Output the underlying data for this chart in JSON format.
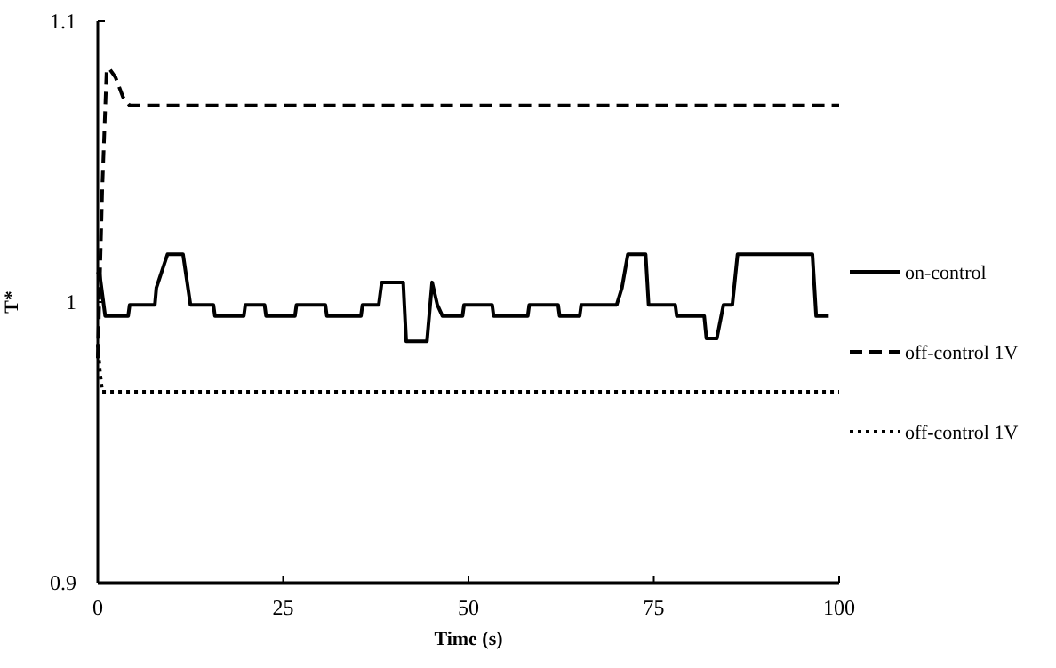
{
  "chart_data": {
    "type": "line",
    "xlabel": "Time (s)",
    "ylabel": "T*",
    "xlim": [
      0,
      100
    ],
    "ylim": [
      0.9,
      1.1
    ],
    "xticks": [
      0,
      25,
      50,
      75,
      100
    ],
    "yticks": [
      {
        "value": 0.9,
        "label": "0.9"
      },
      {
        "value": 1,
        "label": "1"
      },
      {
        "value": 1.1,
        "label": "1.1"
      }
    ],
    "grid": false,
    "legend": "right",
    "marker": "none",
    "series": [
      {
        "name": "on-control",
        "color": "#000000",
        "line_style": "solid",
        "x": [
          0,
          0.2,
          1,
          4.1,
          4.3,
          7.7,
          7.9,
          9.4,
          11.5,
          12.5,
          15.6,
          15.8,
          19.7,
          19.9,
          22.5,
          22.7,
          26.6,
          26.8,
          30.7,
          30.9,
          35.5,
          35.7,
          37.9,
          38.3,
          41.2,
          41.6,
          44.4,
          45.1,
          45.8,
          46.5,
          49.2,
          49.4,
          53.2,
          53.4,
          58,
          58.2,
          62.1,
          62.3,
          65,
          65.2,
          70,
          70.7,
          71.5,
          73.9,
          74.3,
          77.9,
          78.1,
          81.8,
          82.1,
          83.5,
          84.4,
          85.6,
          86.3,
          96.4,
          96.9,
          98.6
        ],
        "values": [
          1.01,
          1.011,
          0.995,
          0.995,
          0.999,
          0.999,
          1.005,
          1.017,
          1.017,
          0.999,
          0.999,
          0.995,
          0.995,
          0.999,
          0.999,
          0.995,
          0.995,
          0.999,
          0.999,
          0.995,
          0.995,
          0.999,
          0.999,
          1.007,
          1.007,
          0.986,
          0.986,
          1.007,
          0.999,
          0.995,
          0.995,
          0.999,
          0.999,
          0.995,
          0.995,
          0.999,
          0.999,
          0.995,
          0.995,
          0.999,
          0.999,
          1.005,
          1.017,
          1.017,
          0.999,
          0.999,
          0.995,
          0.995,
          0.987,
          0.987,
          0.999,
          0.999,
          1.017,
          1.017,
          0.995,
          0.995
        ]
      },
      {
        "name": "off-control 1V",
        "color": "#000000",
        "line_style": "dashed",
        "x": [
          0,
          0.6,
          1.2,
          1.6,
          2.4,
          3.4,
          4.3,
          100
        ],
        "values": [
          0.98,
          1.04,
          1.083,
          1.083,
          1.08,
          1.073,
          1.07,
          1.07
        ]
      },
      {
        "name": "off-control 1V",
        "color": "#000000",
        "line_style": "dotted",
        "x": [
          0,
          0.3,
          0.6,
          100
        ],
        "values": [
          0.985,
          0.975,
          0.968,
          0.968
        ]
      }
    ]
  }
}
